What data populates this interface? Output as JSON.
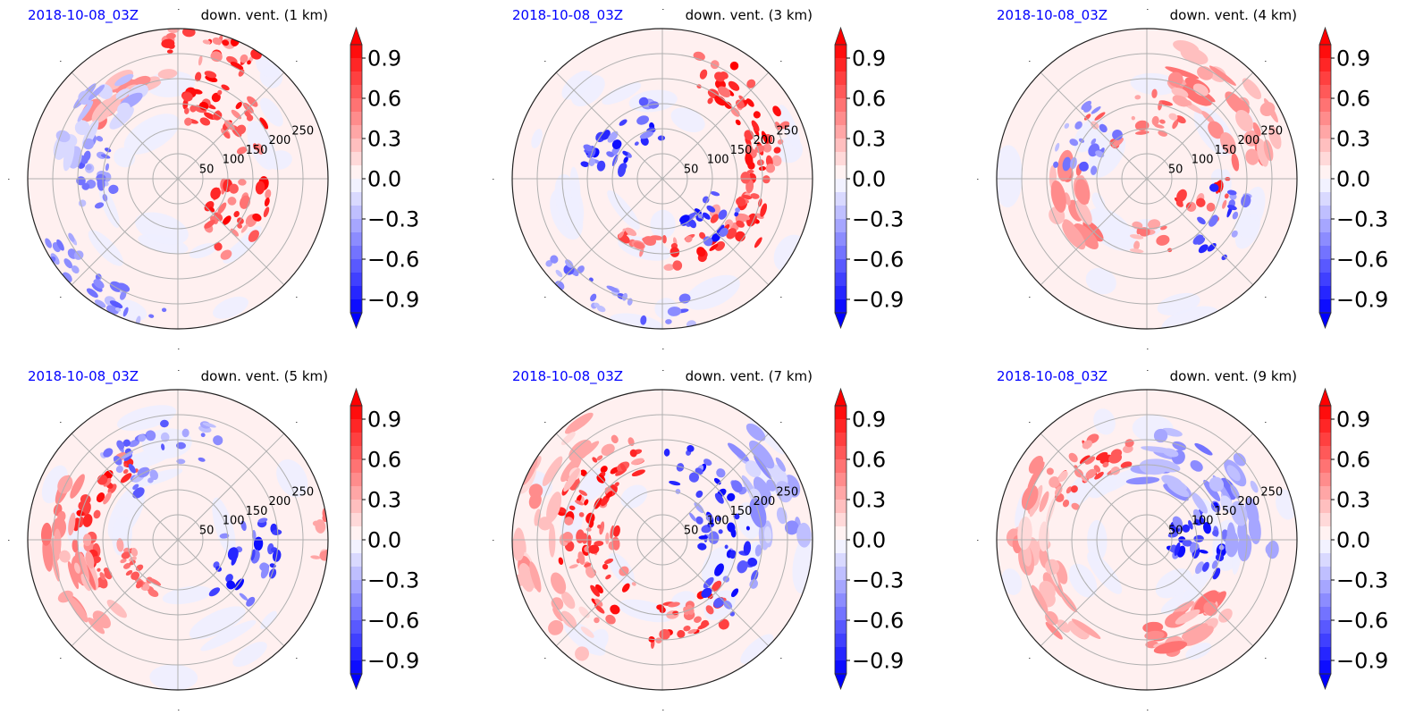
{
  "chart_data": [
    {
      "type": "heatmap",
      "projection": "polar",
      "title_left": "2018-10-08_03Z",
      "title_right": "down. vent. (1 km)",
      "radial_ticks": [
        "50",
        "100",
        "150",
        "200",
        "250"
      ],
      "radial_range_km": [
        0,
        300
      ],
      "grid": true,
      "colorbar": {
        "ticks": [
          "0.9",
          "0.6",
          "0.3",
          "0.0",
          "−0.3",
          "−0.6",
          "−0.9"
        ],
        "range": [
          -1.0,
          1.0
        ],
        "extend": "both",
        "cmap": "bwr"
      },
      "features": [
        {
          "r": 0.55,
          "theta": 50,
          "spread_r": 0.18,
          "spread_t": 35,
          "value": 0.95,
          "n": 40
        },
        {
          "r": 0.45,
          "theta": 330,
          "spread_r": 0.2,
          "spread_t": 30,
          "value": 0.95,
          "n": 35
        },
        {
          "r": 0.9,
          "theta": 75,
          "spread_r": 0.1,
          "spread_t": 20,
          "value": 0.95,
          "n": 25
        },
        {
          "r": 0.7,
          "theta": 120,
          "spread_r": 0.08,
          "spread_t": 25,
          "value": 0.5,
          "n": 18
        },
        {
          "r": 0.55,
          "theta": 175,
          "spread_r": 0.12,
          "spread_t": 25,
          "value": -0.6,
          "n": 25
        },
        {
          "r": 0.9,
          "theta": 235,
          "spread_r": 0.1,
          "spread_t": 30,
          "value": -0.6,
          "n": 30
        },
        {
          "r": 0.7,
          "theta": 140,
          "spread_r": 0.15,
          "spread_t": 30,
          "value": -0.3,
          "n": 20
        }
      ]
    },
    {
      "type": "heatmap",
      "projection": "polar",
      "title_left": "2018-10-08_03Z",
      "title_right": "down. vent. (3 km)",
      "radial_ticks": [
        "50",
        "100",
        "150",
        "200",
        "250"
      ],
      "radial_range_km": [
        0,
        300
      ],
      "grid": true,
      "colorbar": {
        "ticks": [
          "0.9",
          "0.6",
          "0.3",
          "0.0",
          "−0.3",
          "−0.6",
          "−0.9"
        ],
        "range": [
          -1.0,
          1.0
        ],
        "extend": "both",
        "cmap": "bwr"
      },
      "features": [
        {
          "r": 0.75,
          "theta": 40,
          "spread_r": 0.15,
          "spread_t": 35,
          "value": 0.95,
          "n": 45
        },
        {
          "r": 0.65,
          "theta": 350,
          "spread_r": 0.12,
          "spread_t": 30,
          "value": 0.95,
          "n": 30
        },
        {
          "r": 0.5,
          "theta": 300,
          "spread_r": 0.1,
          "spread_t": 30,
          "value": 0.9,
          "n": 20
        },
        {
          "r": 0.45,
          "theta": 250,
          "spread_r": 0.06,
          "spread_t": 25,
          "value": 0.7,
          "n": 15
        },
        {
          "r": 0.4,
          "theta": 130,
          "spread_r": 0.15,
          "spread_t": 40,
          "value": -0.9,
          "n": 35
        },
        {
          "r": 0.45,
          "theta": 320,
          "spread_r": 0.15,
          "spread_t": 25,
          "value": -0.9,
          "n": 20
        },
        {
          "r": 0.9,
          "theta": 250,
          "spread_r": 0.1,
          "spread_t": 35,
          "value": -0.6,
          "n": 25
        }
      ]
    },
    {
      "type": "heatmap",
      "projection": "polar",
      "title_left": "2018-10-08_03Z",
      "title_right": "down. vent. (4 km)",
      "radial_ticks": [
        "50",
        "100",
        "150",
        "200",
        "250"
      ],
      "radial_range_km": [
        0,
        300
      ],
      "grid": true,
      "colorbar": {
        "ticks": [
          "0.9",
          "0.6",
          "0.3",
          "0.0",
          "−0.3",
          "−0.6",
          "−0.9"
        ],
        "range": [
          -1.0,
          1.0
        ],
        "extend": "both",
        "cmap": "bwr"
      },
      "features": [
        {
          "r": 0.75,
          "theta": 45,
          "spread_r": 0.2,
          "spread_t": 35,
          "value": 0.5,
          "n": 35
        },
        {
          "r": 0.45,
          "theta": 100,
          "spread_r": 0.15,
          "spread_t": 40,
          "value": 0.6,
          "n": 20
        },
        {
          "r": 0.55,
          "theta": 200,
          "spread_r": 0.12,
          "spread_t": 30,
          "value": 0.5,
          "n": 18
        },
        {
          "r": 0.4,
          "theta": 270,
          "spread_r": 0.1,
          "spread_t": 20,
          "value": 0.6,
          "n": 12
        },
        {
          "r": 0.4,
          "theta": 340,
          "spread_r": 0.15,
          "spread_t": 20,
          "value": 0.9,
          "n": 15
        },
        {
          "r": 0.5,
          "theta": 150,
          "spread_r": 0.15,
          "spread_t": 30,
          "value": -0.6,
          "n": 20
        },
        {
          "r": 0.6,
          "theta": 330,
          "spread_r": 0.15,
          "spread_t": 25,
          "value": -0.8,
          "n": 18
        }
      ]
    },
    {
      "type": "heatmap",
      "projection": "polar",
      "title_left": "2018-10-08_03Z",
      "title_right": "down. vent. (5 km)",
      "radial_ticks": [
        "50",
        "100",
        "150",
        "200",
        "250"
      ],
      "radial_range_km": [
        0,
        300
      ],
      "grid": true,
      "colorbar": {
        "ticks": [
          "0.9",
          "0.6",
          "0.3",
          "0.0",
          "−0.3",
          "−0.6",
          "−0.9"
        ],
        "range": [
          -1.0,
          1.0
        ],
        "extend": "both",
        "cmap": "bwr"
      },
      "features": [
        {
          "r": 0.6,
          "theta": 165,
          "spread_r": 0.1,
          "spread_t": 45,
          "value": 0.95,
          "n": 45
        },
        {
          "r": 0.75,
          "theta": 190,
          "spread_r": 0.15,
          "spread_t": 40,
          "value": 0.5,
          "n": 30
        },
        {
          "r": 0.35,
          "theta": 225,
          "spread_r": 0.05,
          "spread_t": 40,
          "value": 0.7,
          "n": 20
        },
        {
          "r": 0.6,
          "theta": 100,
          "spread_r": 0.2,
          "spread_t": 35,
          "value": -0.6,
          "n": 35
        },
        {
          "r": 0.5,
          "theta": 340,
          "spread_r": 0.2,
          "spread_t": 35,
          "value": -0.9,
          "n": 30
        },
        {
          "r": 0.95,
          "theta": 0,
          "spread_r": 0.05,
          "spread_t": 10,
          "value": 0.6,
          "n": 8
        }
      ]
    },
    {
      "type": "heatmap",
      "projection": "polar",
      "title_left": "2018-10-08_03Z",
      "title_right": "down. vent. (7 km)",
      "radial_ticks": [
        "50",
        "100",
        "150",
        "200",
        "250"
      ],
      "radial_range_km": [
        0,
        300
      ],
      "grid": true,
      "colorbar": {
        "ticks": [
          "0.9",
          "0.6",
          "0.3",
          "0.0",
          "−0.3",
          "−0.6",
          "−0.9"
        ],
        "range": [
          -1.0,
          1.0
        ],
        "extend": "both",
        "cmap": "bwr"
      },
      "features": [
        {
          "r": 0.6,
          "theta": 135,
          "spread_r": 0.15,
          "spread_t": 30,
          "value": 0.95,
          "n": 40
        },
        {
          "r": 0.5,
          "theta": 200,
          "spread_r": 0.2,
          "spread_t": 40,
          "value": 0.9,
          "n": 45
        },
        {
          "r": 0.55,
          "theta": 290,
          "spread_r": 0.15,
          "spread_t": 30,
          "value": 0.9,
          "n": 30
        },
        {
          "r": 0.85,
          "theta": 180,
          "spread_r": 0.15,
          "spread_t": 60,
          "value": 0.4,
          "n": 35
        },
        {
          "r": 0.45,
          "theta": 40,
          "spread_r": 0.2,
          "spread_t": 50,
          "value": -0.9,
          "n": 40
        },
        {
          "r": 0.8,
          "theta": 25,
          "spread_r": 0.15,
          "spread_t": 25,
          "value": -0.4,
          "n": 25
        },
        {
          "r": 0.55,
          "theta": 330,
          "spread_r": 0.15,
          "spread_t": 25,
          "value": -0.9,
          "n": 20
        }
      ]
    },
    {
      "type": "heatmap",
      "projection": "polar",
      "title_left": "2018-10-08_03Z",
      "title_right": "down. vent. (9 km)",
      "radial_ticks": [
        "50",
        "100",
        "150",
        "200",
        "250"
      ],
      "radial_range_km": [
        0,
        300
      ],
      "grid": true,
      "colorbar": {
        "ticks": [
          "0.9",
          "0.6",
          "0.3",
          "0.0",
          "−0.3",
          "−0.6",
          "−0.9"
        ],
        "range": [
          -1.0,
          1.0
        ],
        "extend": "both",
        "cmap": "bwr"
      },
      "features": [
        {
          "r": 0.65,
          "theta": 130,
          "spread_r": 0.15,
          "spread_t": 30,
          "value": 0.8,
          "n": 35
        },
        {
          "r": 0.75,
          "theta": 190,
          "spread_r": 0.15,
          "spread_t": 50,
          "value": 0.4,
          "n": 35
        },
        {
          "r": 0.65,
          "theta": 290,
          "spread_r": 0.15,
          "spread_t": 30,
          "value": 0.5,
          "n": 25
        },
        {
          "r": 0.35,
          "theta": 0,
          "spread_r": 0.2,
          "spread_t": 30,
          "value": -0.95,
          "n": 35
        },
        {
          "r": 0.55,
          "theta": 60,
          "spread_r": 0.2,
          "spread_t": 35,
          "value": -0.5,
          "n": 25
        },
        {
          "r": 0.7,
          "theta": 20,
          "spread_r": 0.15,
          "spread_t": 25,
          "value": -0.4,
          "n": 18
        }
      ]
    }
  ]
}
